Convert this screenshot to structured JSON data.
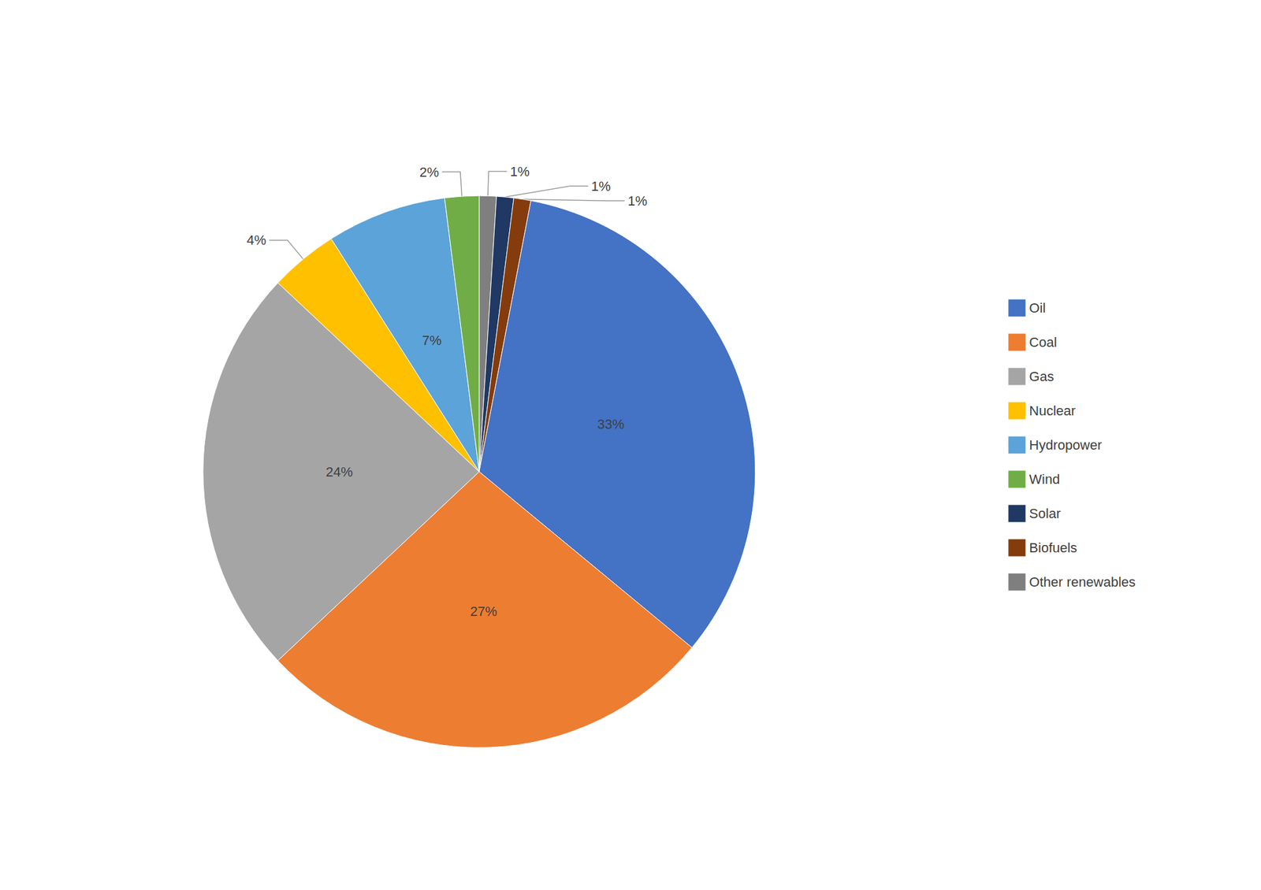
{
  "chart_data": {
    "type": "pie",
    "categories": [
      "Other renewables",
      "Solar",
      "Biofuels",
      "Oil",
      "Coal",
      "Gas",
      "Nuclear",
      "Hydropower",
      "Wind"
    ],
    "values": [
      1,
      1,
      1,
      33,
      27,
      24,
      4,
      7,
      2
    ],
    "value_labels": [
      "1%",
      "1%",
      "1%",
      "33%",
      "27%",
      "24%",
      "4%",
      "7%",
      "2%"
    ],
    "colors": [
      "#7F7F7F",
      "#1F3864",
      "#843C0C",
      "#4472C4",
      "#ED7D31",
      "#A5A5A5",
      "#FFC000",
      "#5BA3D9",
      "#70AD47"
    ],
    "data_labels": true,
    "legend": "right",
    "legend_entries": [
      "Oil",
      "Coal",
      "Gas",
      "Nuclear",
      "Hydropower",
      "Wind",
      "Solar",
      "Biofuels",
      "Other renewables"
    ]
  }
}
